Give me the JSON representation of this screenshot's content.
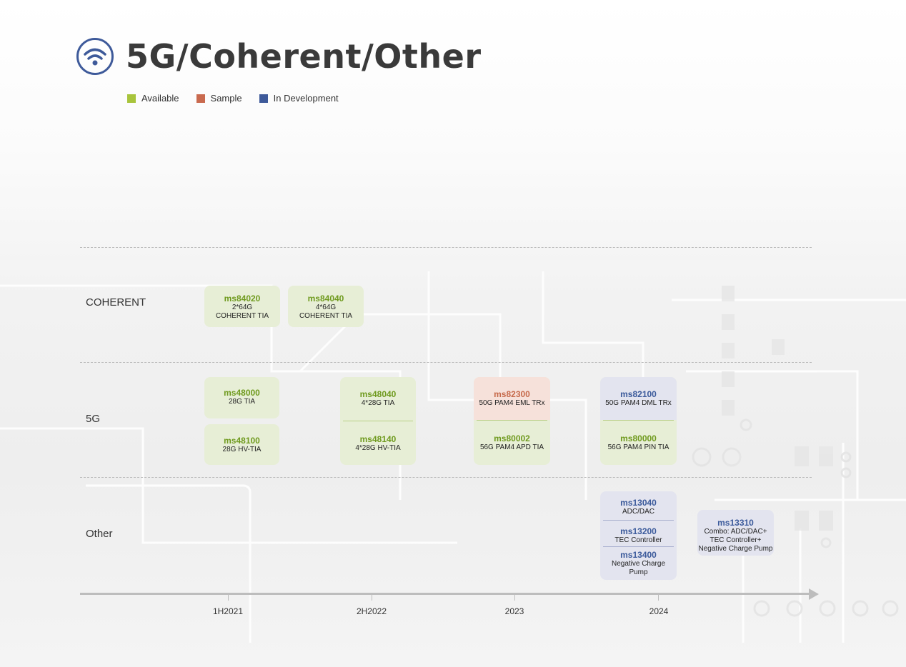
{
  "title": "5G/Coherent/Other",
  "title_icon": "wifi-icon",
  "colors": {
    "available": "#a8c43c",
    "sample": "#c96a4f",
    "in_development": "#3e5a9a"
  },
  "legend": [
    {
      "label": "Available",
      "color": "#a8c43c"
    },
    {
      "label": "Sample",
      "color": "#c96a4f"
    },
    {
      "label": "In Development",
      "color": "#3e5a9a"
    }
  ],
  "rows": {
    "coherent": "COHERENT",
    "fiveg": "5G",
    "other": "Other"
  },
  "timeline": [
    "1H2021",
    "2H2022",
    "2023",
    "2024"
  ],
  "products": {
    "ms84020": {
      "code": "ms84020",
      "desc1": "2*64G",
      "desc2": "COHERENT TIA"
    },
    "ms84040": {
      "code": "ms84040",
      "desc1": "4*64G",
      "desc2": "COHERENT TIA"
    },
    "ms48000": {
      "code": "ms48000",
      "desc": "28G TIA"
    },
    "ms48100": {
      "code": "ms48100",
      "desc": "28G HV-TIA"
    },
    "ms48040": {
      "code": "ms48040",
      "desc": "4*28G TIA"
    },
    "ms48140": {
      "code": "ms48140",
      "desc": "4*28G HV-TIA"
    },
    "ms82300": {
      "code": "ms82300",
      "desc": "50G PAM4 EML TRx"
    },
    "ms80002": {
      "code": "ms80002",
      "desc": "56G PAM4 APD TIA"
    },
    "ms82100": {
      "code": "ms82100",
      "desc": "50G PAM4 DML TRx"
    },
    "ms80000": {
      "code": "ms80000",
      "desc": "56G PAM4 PIN TIA"
    },
    "ms13040": {
      "code": "ms13040",
      "desc": "ADC/DAC"
    },
    "ms13200": {
      "code": "ms13200",
      "desc": "TEC Controller"
    },
    "ms13400": {
      "code": "ms13400",
      "desc1": "Negative Charge",
      "desc2": "Pump"
    },
    "ms13310": {
      "code": "ms13310",
      "desc1": "Combo: ADC/DAC+",
      "desc2": "TEC Controller+",
      "desc3": "Negative Charge Pump"
    }
  }
}
